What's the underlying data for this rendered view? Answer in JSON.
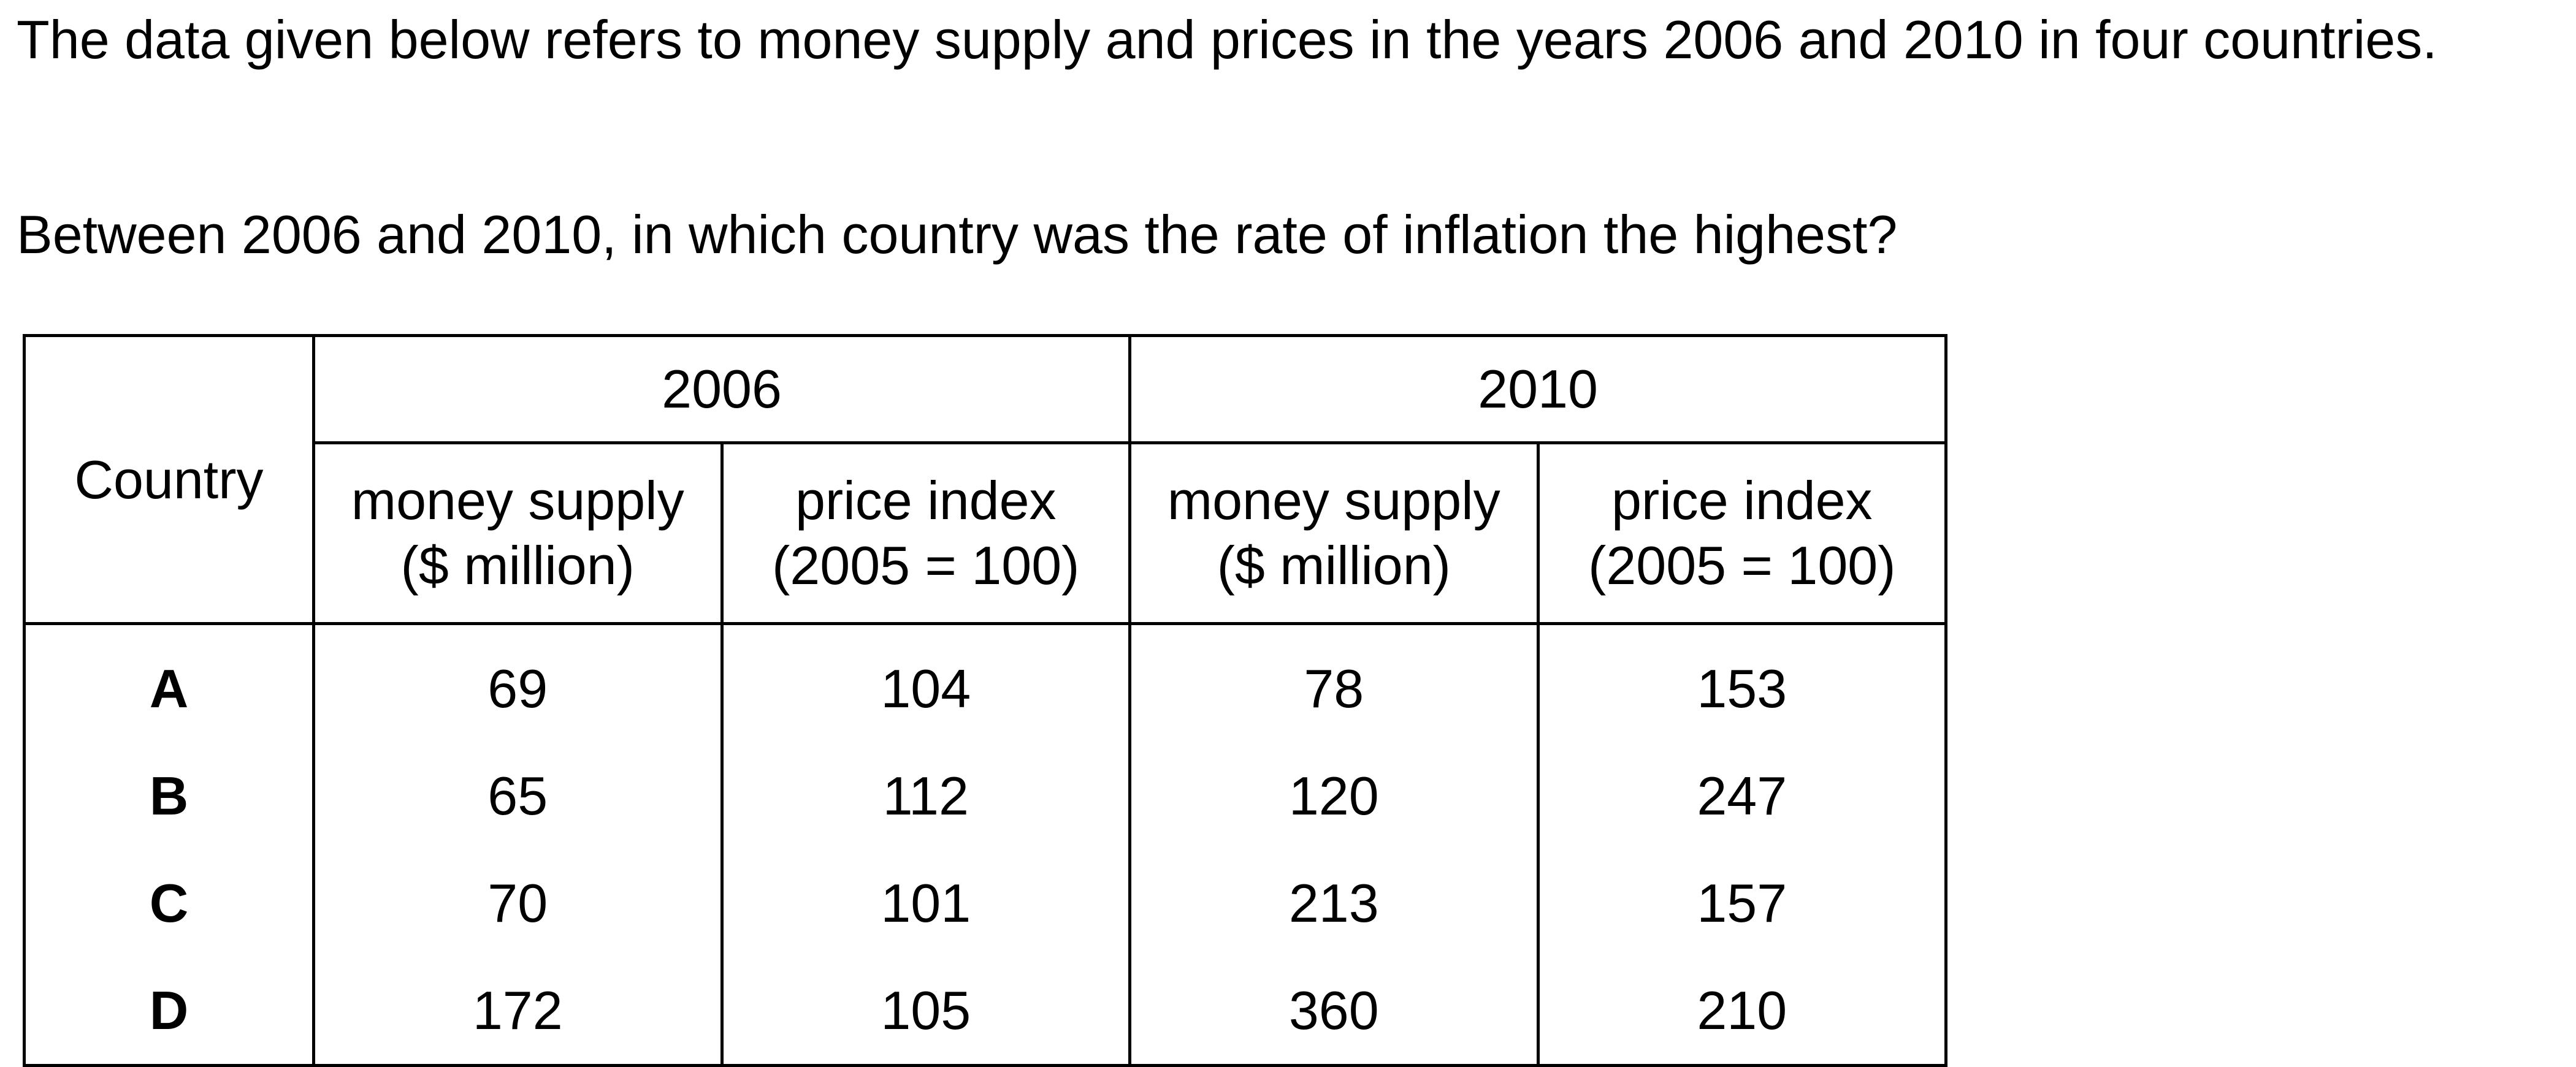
{
  "intro": "The data given below refers to money supply and prices in the years 2006 and 2010 in four countries.",
  "question": "Between 2006 and 2010, in which country was the rate of inflation the highest?",
  "table": {
    "country_header": "Country",
    "years": [
      "2006",
      "2010"
    ],
    "sub_headers": [
      {
        "line1": "money supply",
        "line2": "($ million)"
      },
      {
        "line1": "price index",
        "line2": "(2005 = 100)"
      },
      {
        "line1": "money supply",
        "line2": "($ million)"
      },
      {
        "line1": "price index",
        "line2": "(2005 = 100)"
      }
    ],
    "rows": [
      {
        "country": "A",
        "values": [
          "69",
          "104",
          "78",
          "153"
        ]
      },
      {
        "country": "B",
        "values": [
          "65",
          "112",
          "120",
          "247"
        ]
      },
      {
        "country": "C",
        "values": [
          "70",
          "101",
          "213",
          "157"
        ]
      },
      {
        "country": "D",
        "values": [
          "172",
          "105",
          "360",
          "210"
        ]
      }
    ]
  }
}
